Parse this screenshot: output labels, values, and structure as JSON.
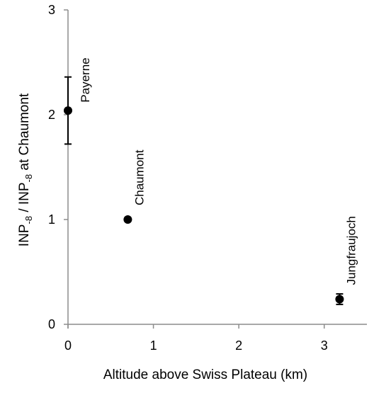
{
  "chart_data": {
    "type": "scatter",
    "title": "",
    "xlabel": "Altitude above Swiss Plateau (km)",
    "ylabel": {
      "parts": [
        {
          "text": "INP",
          "sub": false
        },
        {
          "text": "-8",
          "sub": true
        },
        {
          "text": " / INP",
          "sub": false
        },
        {
          "text": "-8",
          "sub": true
        },
        {
          "text": " at Chaumont",
          "sub": false
        }
      ]
    },
    "xlim": [
      0,
      3.5
    ],
    "ylim": [
      0,
      3
    ],
    "xticks": [
      0,
      1,
      2,
      3
    ],
    "yticks": [
      0,
      1,
      2,
      3
    ],
    "grid": false,
    "points": [
      {
        "label": "Payerne",
        "x": 0.0,
        "y": 2.04,
        "err_low": 1.72,
        "err_high": 2.36
      },
      {
        "label": "Chaumont",
        "x": 0.7,
        "y": 1.0
      },
      {
        "label": "Jungfraujoch",
        "x": 3.18,
        "y": 0.24,
        "err_low": 0.19,
        "err_high": 0.29
      }
    ],
    "colors": {
      "axis": "#8c8c8c",
      "marker": "#000000"
    }
  }
}
